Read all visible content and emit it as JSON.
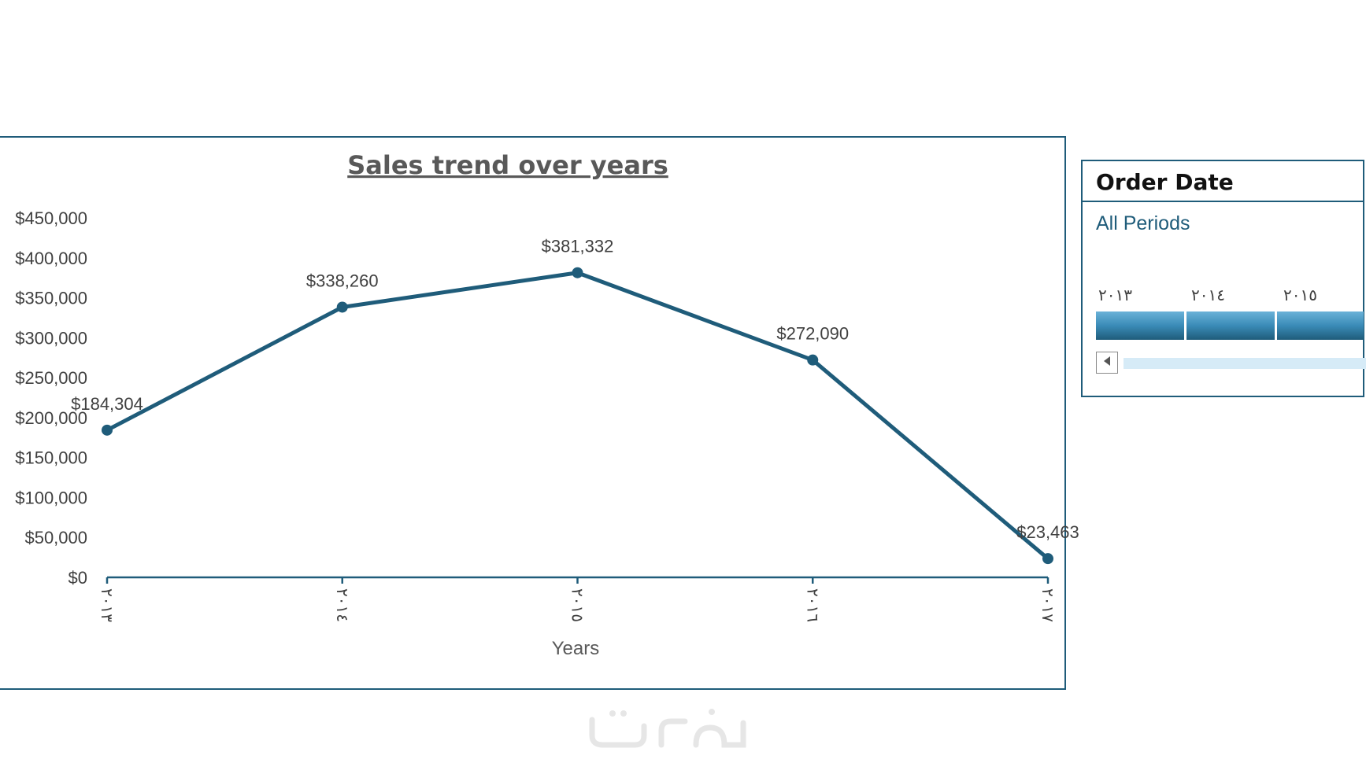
{
  "chart_data": {
    "type": "line",
    "title": "Sales trend over years",
    "xlabel": "Years",
    "ylabel": "",
    "categories": [
      "٢٠١٣",
      "٢٠١٤",
      "٢٠١٥",
      "٢٠١٦",
      "٢٠١٧"
    ],
    "values": [
      184304,
      338260,
      381332,
      272090,
      23463
    ],
    "data_labels": [
      "$184,304",
      "$338,260",
      "$381,332",
      "$272,090",
      "$23,463"
    ],
    "y_ticks": [
      "$0",
      "$50,000",
      "$100,000",
      "$150,000",
      "$200,000",
      "$250,000",
      "$300,000",
      "$350,000",
      "$400,000",
      "$450,000"
    ],
    "ylim": [
      0,
      450000
    ],
    "grid": false,
    "legend": "none",
    "line_color": "#1f5c7a"
  },
  "slicer": {
    "title": "Order Date",
    "period": "All Periods",
    "years": [
      "٢٠١٣",
      "٢٠١٤",
      "٢٠١٥"
    ],
    "selected_color": "#1f5c7a"
  }
}
